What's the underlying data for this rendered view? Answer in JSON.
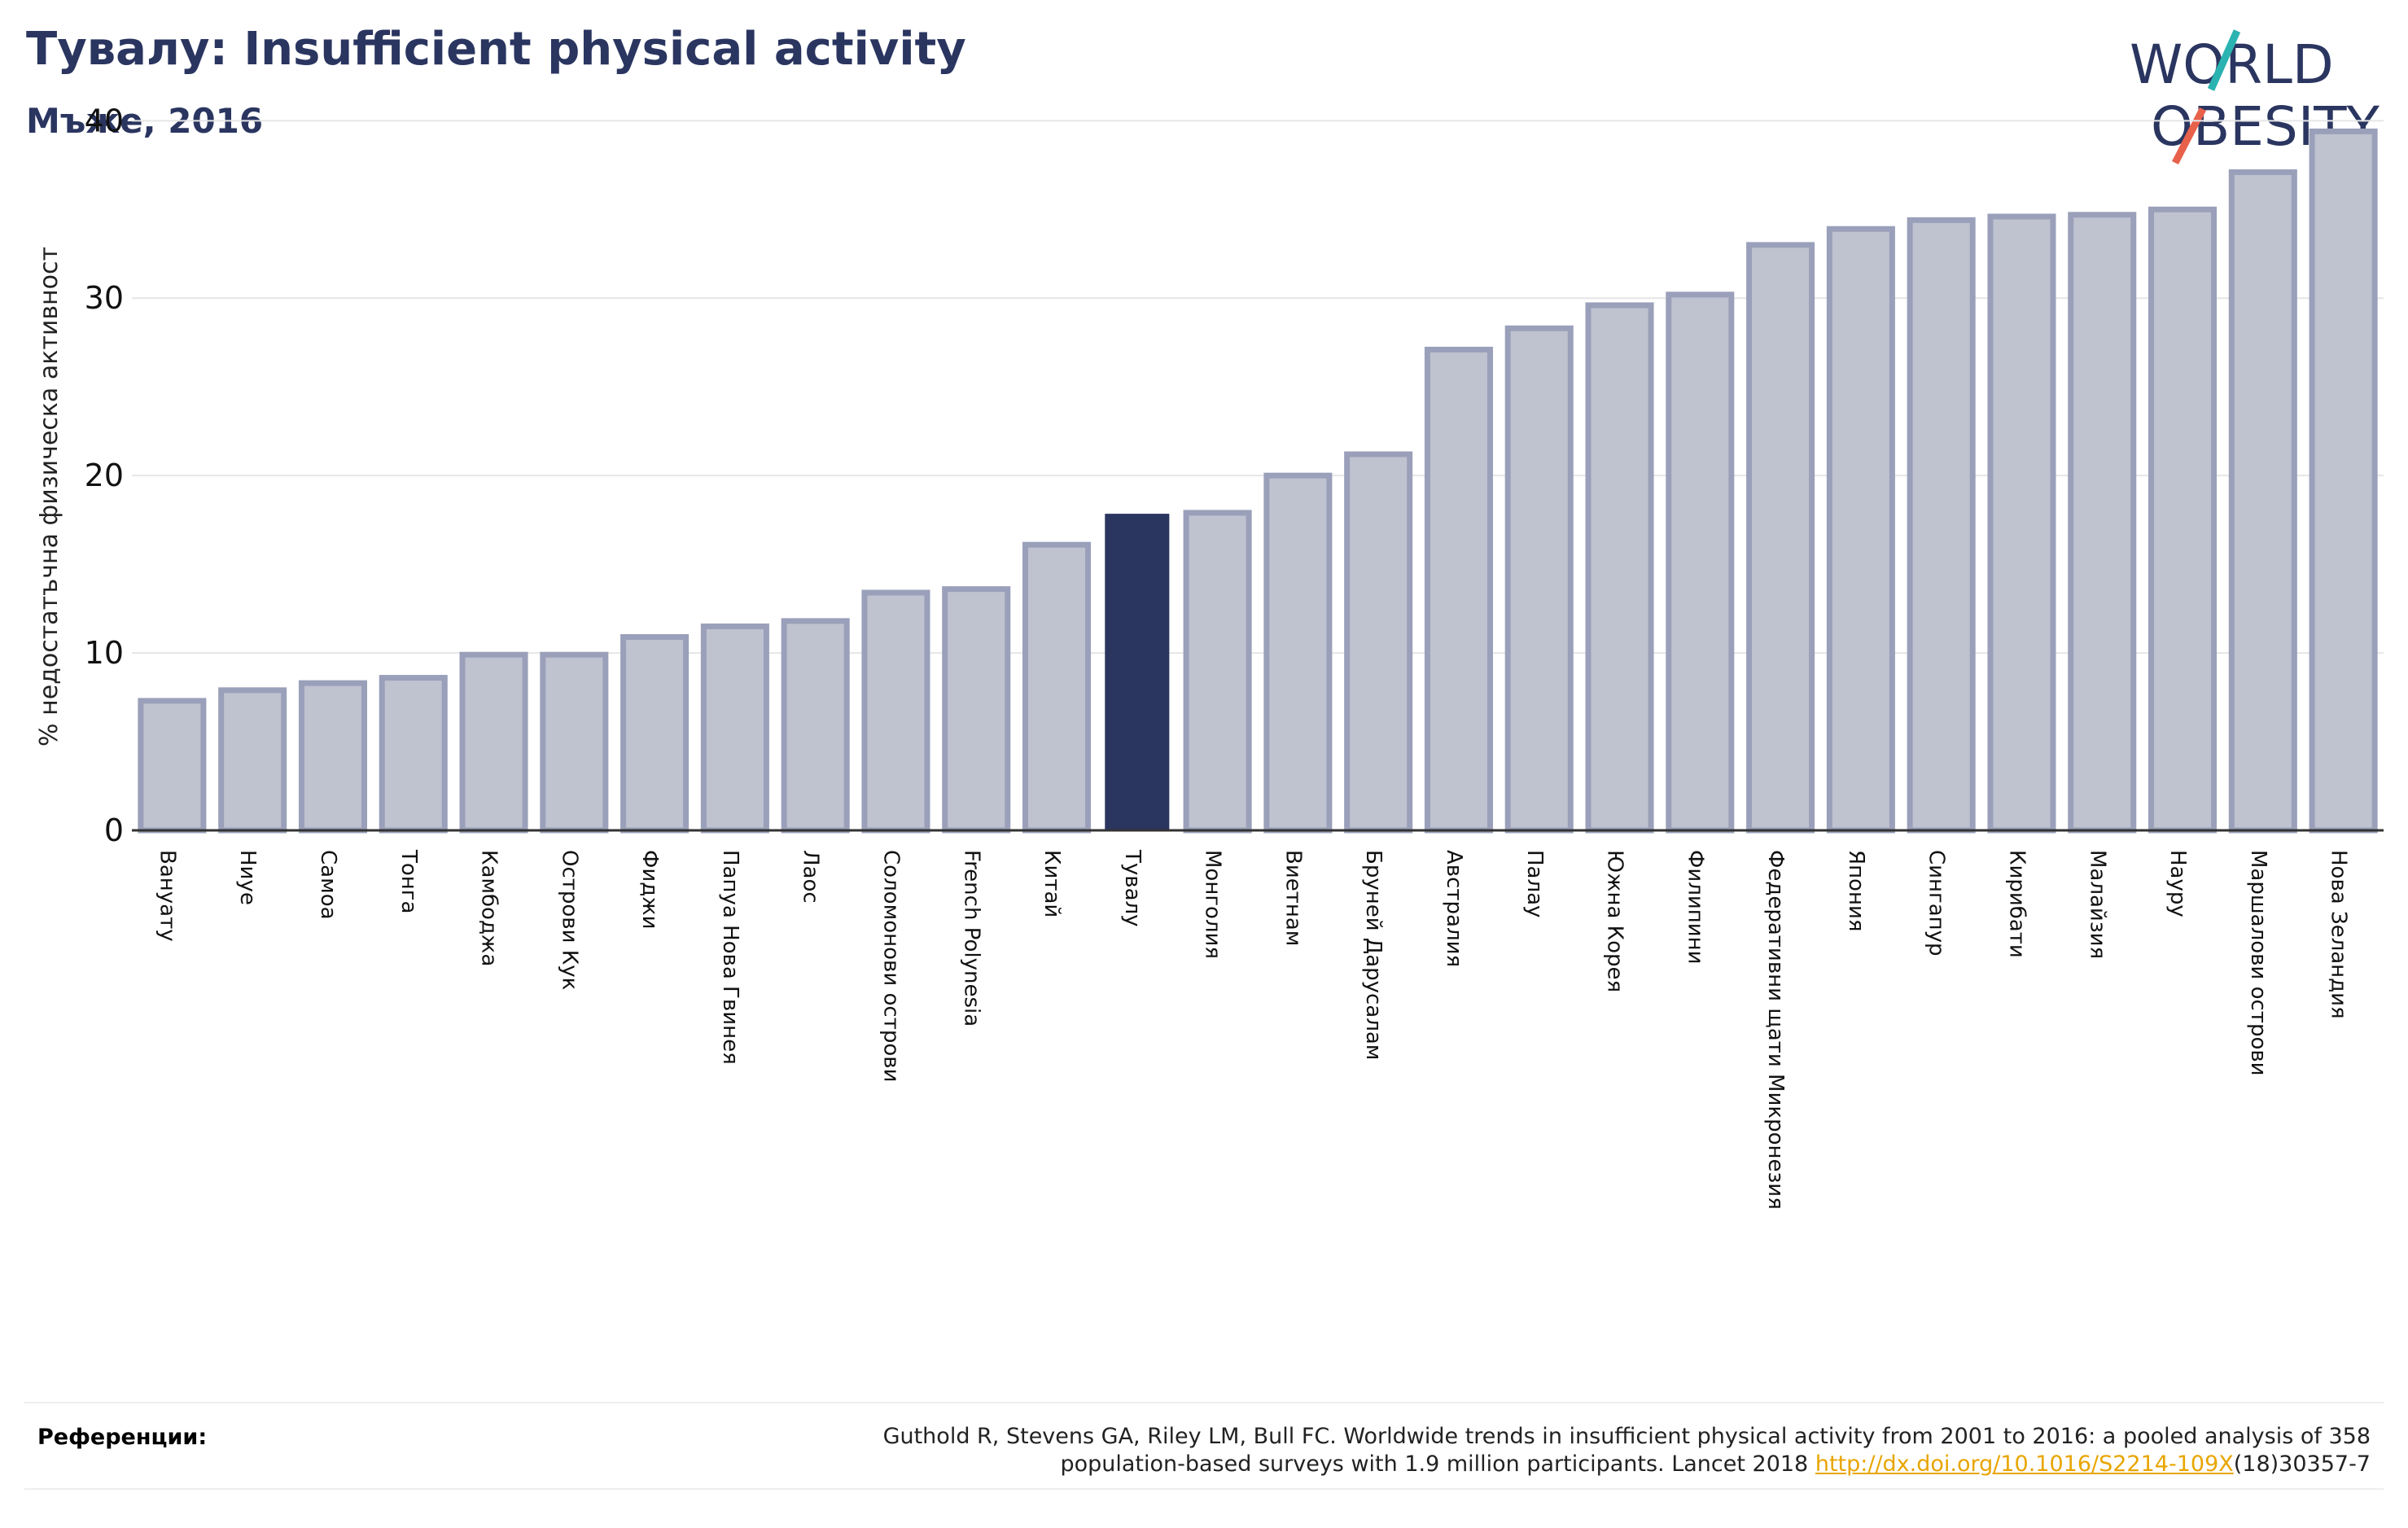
{
  "title": "Тувалу: Insufficient physical activity",
  "subtitle": "Мъже, 2016",
  "logo": {
    "line1": "WORLD",
    "line2": "OBESITY"
  },
  "references": {
    "label": "Референции:",
    "text_line1": "Guthold R, Stevens GA, Riley LM, Bull FC. Worldwide trends in insufficient physical activity from 2001 to 2016: a pooled analysis of 358",
    "text_line2": "population-based surveys with 1.9 million participants. Lancet 2018 ",
    "link": "http://dx.doi.org/10.1016/S2214-109X",
    "link_suffix": "(18)30357-7"
  },
  "colors": {
    "bar": "#bfc2cf",
    "bar_border": "#9aa0ba",
    "highlight": "#2a3560",
    "text": "#2a3560",
    "grid": "#e6e6e6",
    "link": "#e8a500",
    "logo_teal": "#2ab3b0",
    "logo_red": "#e8614b"
  },
  "chart_data": {
    "type": "bar",
    "ylabel": "% недостатъчна физическа активност",
    "ylim": [
      0,
      40
    ],
    "yticks": [
      0,
      10,
      20,
      30,
      40
    ],
    "grid": true,
    "highlight": "Тувалу",
    "categories": [
      "Вануату",
      "Ниуе",
      "Самоа",
      "Тонга",
      "Камбоджа",
      "Острови Кук",
      "Фиджи",
      "Папуа Нова Гвинея",
      "Лаос",
      "Соломонови острови",
      "French Polynesia",
      "Китай",
      "Тувалу",
      "Монголия",
      "Виетнам",
      "Бруней Дарусалам",
      "Австралия",
      "Палау",
      "Южна Корея",
      "Филипини",
      "Федеративни щати Микронезия",
      "Япония",
      "Сингапур",
      "Кирибати",
      "Малайзия",
      "Науру",
      "Маршалови острови",
      "Нова Зеландия"
    ],
    "values": [
      7.3,
      7.9,
      8.3,
      8.6,
      9.9,
      9.9,
      10.9,
      11.5,
      11.8,
      13.4,
      13.6,
      16.1,
      17.8,
      17.9,
      20.0,
      21.2,
      27.1,
      28.3,
      29.6,
      30.2,
      33.0,
      33.9,
      34.4,
      34.6,
      34.7,
      35.0,
      37.1,
      39.4
    ]
  }
}
